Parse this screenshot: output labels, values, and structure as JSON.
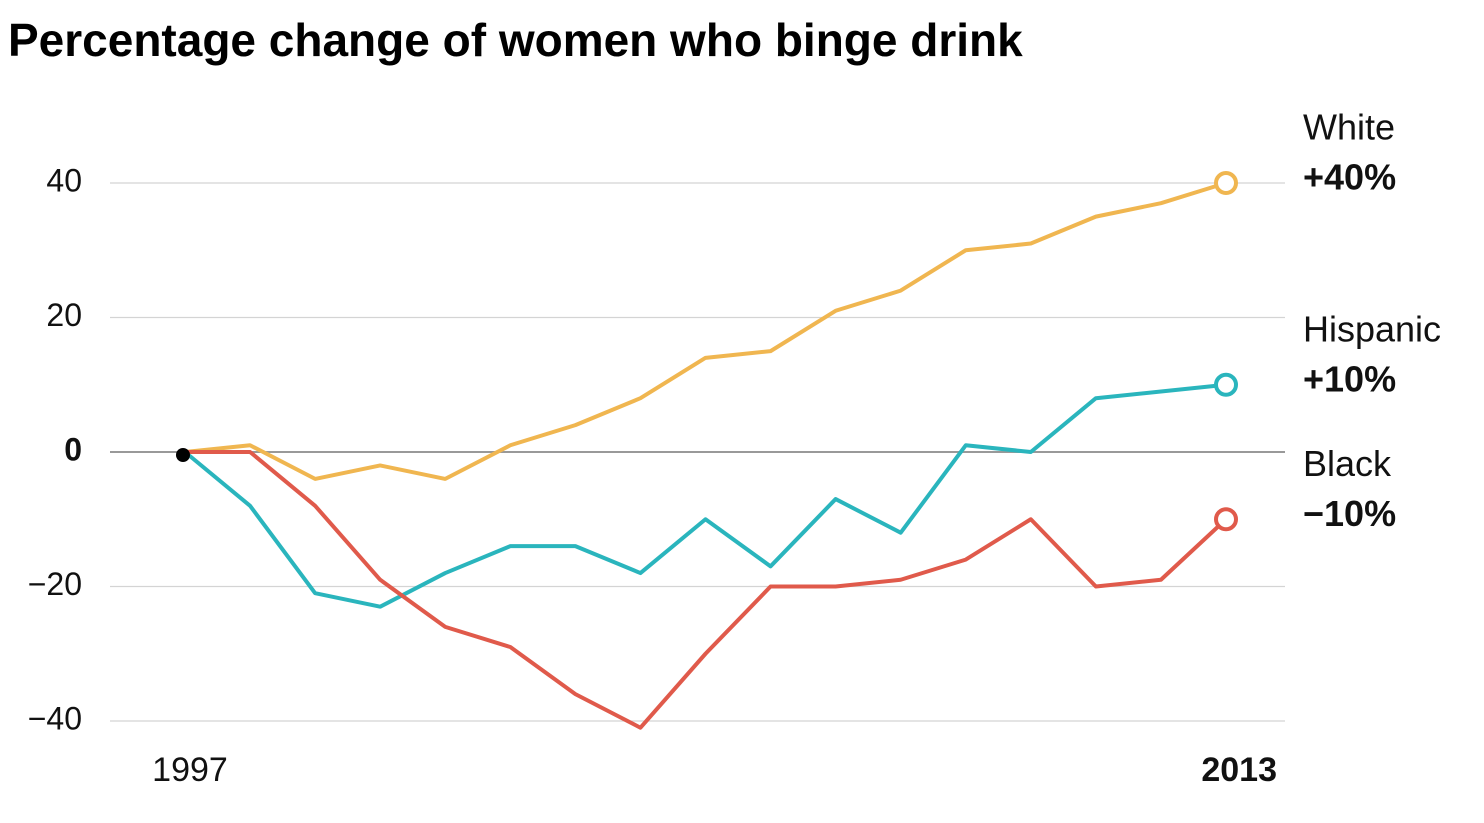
{
  "chart_data": {
    "type": "line",
    "title": "Percentage change of women who binge drink",
    "x": [
      1997,
      1998,
      1999,
      2000,
      2001,
      2002,
      2003,
      2004,
      2005,
      2006,
      2007,
      2008,
      2009,
      2010,
      2011,
      2012,
      2013
    ],
    "xlim": [
      1997,
      2013
    ],
    "xticks": [
      1997,
      2013
    ],
    "ylim": [
      -45,
      50
    ],
    "yticks": [
      {
        "value": -40,
        "label": "−40"
      },
      {
        "value": -20,
        "label": "−20"
      },
      0,
      20,
      40
    ],
    "grid": true,
    "series": [
      {
        "name": "White",
        "color": "#f0b650",
        "values": [
          0,
          1,
          -4,
          -2,
          -4,
          1,
          4,
          8,
          14,
          15,
          21,
          24,
          30,
          31,
          35,
          37,
          40
        ],
        "end_label": "+40%"
      },
      {
        "name": "Hispanic",
        "color": "#2ab5bd",
        "values": [
          0,
          -8,
          -21,
          -23,
          -18,
          -14,
          -14,
          -18,
          -10,
          -17,
          -7,
          -12,
          1,
          0,
          8,
          9,
          10
        ],
        "end_label": "+10%"
      },
      {
        "name": "Black",
        "color": "#e05a4b",
        "values": [
          0,
          0,
          -8,
          -19,
          -26,
          -29,
          -36,
          -41,
          -30,
          -20,
          -20,
          -19,
          -16,
          -10,
          -20,
          -19,
          -10
        ],
        "end_label": "−10%"
      }
    ]
  }
}
